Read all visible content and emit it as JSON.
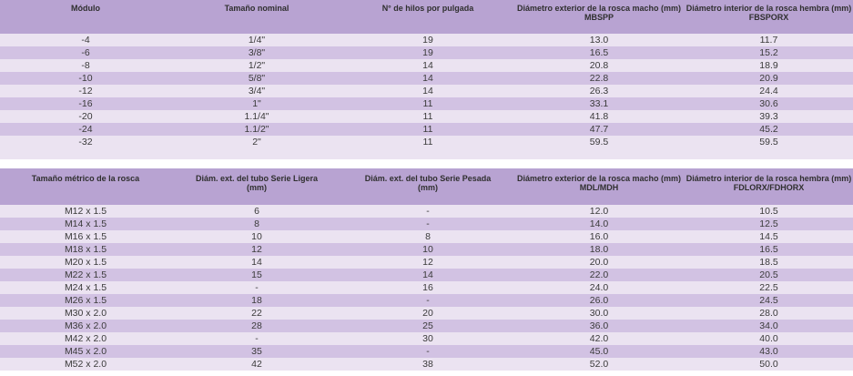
{
  "table1": {
    "headers": [
      [
        "Módulo",
        ""
      ],
      [
        "Tamaño nominal",
        ""
      ],
      [
        "N° de hilos por pulgada",
        ""
      ],
      [
        "Diámetro exterior de la rosca macho (mm)",
        "MBSPP"
      ],
      [
        "Diámetro interior de la rosca hembra (mm)",
        "FBSPORX"
      ]
    ],
    "rows": [
      [
        "-4",
        "1/4\"",
        "19",
        "13.0",
        "11.7"
      ],
      [
        "-6",
        "3/8\"",
        "19",
        "16.5",
        "15.2"
      ],
      [
        "-8",
        "1/2\"",
        "14",
        "20.8",
        "18.9"
      ],
      [
        "-10",
        "5/8\"",
        "14",
        "22.8",
        "20.9"
      ],
      [
        "-12",
        "3/4\"",
        "14",
        "26.3",
        "24.4"
      ],
      [
        "-16",
        "1\"",
        "11",
        "33.1",
        "30.6"
      ],
      [
        "-20",
        "1.1/4\"",
        "11",
        "41.8",
        "39.3"
      ],
      [
        "-24",
        "1.1/2\"",
        "11",
        "47.7",
        "45.2"
      ],
      [
        "-32",
        "2\"",
        "11",
        "59.5",
        "59.5"
      ]
    ]
  },
  "table2": {
    "headers": [
      [
        "Tamaño métrico de la rosca",
        ""
      ],
      [
        "Diám. ext. del tubo Serie Ligera",
        "(mm)"
      ],
      [
        "Diám. ext. del tubo Serie Pesada",
        "(mm)"
      ],
      [
        "Diámetro exterior de la rosca macho (mm)",
        "MDL/MDH"
      ],
      [
        "Diámetro interior de la rosca hembra (mm)",
        "FDLORX/FDHORX"
      ]
    ],
    "rows": [
      [
        "M12 x 1.5",
        "6",
        "-",
        "12.0",
        "10.5"
      ],
      [
        "M14 x 1.5",
        "8",
        "-",
        "14.0",
        "12.5"
      ],
      [
        "M16 x 1.5",
        "10",
        "8",
        "16.0",
        "14.5"
      ],
      [
        "M18 x 1.5",
        "12",
        "10",
        "18.0",
        "16.5"
      ],
      [
        "M20 x 1.5",
        "14",
        "12",
        "20.0",
        "18.5"
      ],
      [
        "M22 x 1.5",
        "15",
        "14",
        "22.0",
        "20.5"
      ],
      [
        "M24 x 1.5",
        "-",
        "16",
        "24.0",
        "22.5"
      ],
      [
        "M26 x 1.5",
        "18",
        "-",
        "26.0",
        "24.5"
      ],
      [
        "M30 x 2.0",
        "22",
        "20",
        "30.0",
        "28.0"
      ],
      [
        "M36 x 2.0",
        "28",
        "25",
        "36.0",
        "34.0"
      ],
      [
        "M42 x 2.0",
        "-",
        "30",
        "42.0",
        "40.0"
      ],
      [
        "M45 x 2.0",
        "35",
        "-",
        "45.0",
        "43.0"
      ],
      [
        "M52 x 2.0",
        "42",
        "38",
        "52.0",
        "50.0"
      ]
    ]
  },
  "colors": {
    "header": "#b8a3d2",
    "row_light": "#ebe3f1",
    "row_dark": "#d2c2e3"
  }
}
